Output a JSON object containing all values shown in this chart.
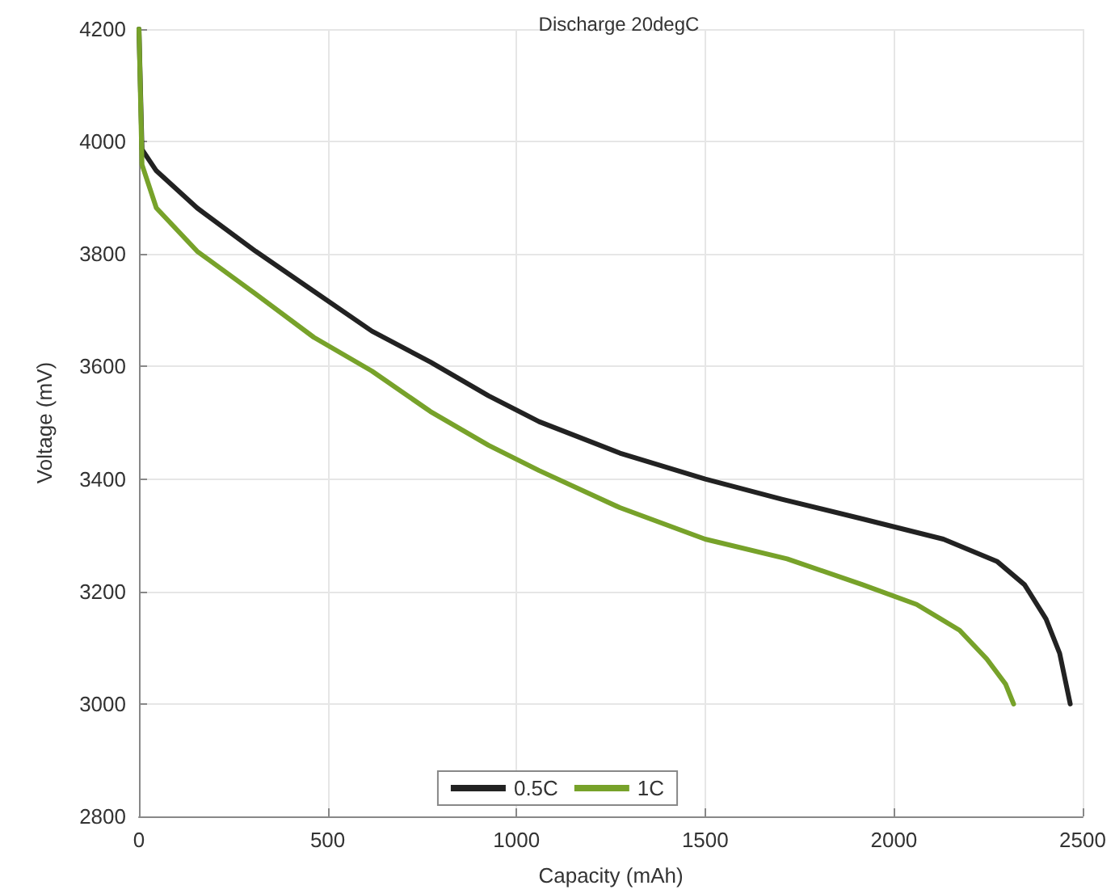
{
  "chart_data": {
    "type": "line",
    "title": "Discharge 20degC",
    "xlabel": "Capacity (mAh)",
    "ylabel": "Voltage (mV)",
    "xlim": [
      0,
      2500
    ],
    "xticks": [
      0,
      500,
      1000,
      1500,
      2000,
      2500
    ],
    "ylim": [
      2800,
      4200
    ],
    "yticks": [
      2800,
      3000,
      3200,
      3400,
      3600,
      3800,
      4000,
      4200
    ],
    "grid": true,
    "legend": "bottom",
    "marker": "none",
    "line_style": "solid",
    "series": [
      {
        "name": "0.5C",
        "color": "#222222",
        "x": [
          0,
          8,
          46,
          154,
          309,
          463,
          617,
          772,
          926,
          1060,
          1274,
          1500,
          1703,
          1917,
          2131,
          2274,
          2346,
          2403,
          2439,
          2467
        ],
        "values": [
          4200,
          3986,
          3948,
          3882,
          3805,
          3734,
          3663,
          3608,
          3548,
          3502,
          3446,
          3400,
          3364,
          3329,
          3293,
          3253,
          3212,
          3151,
          3090,
          3000
        ]
      },
      {
        "name": "1C",
        "color": "#77a22a",
        "x": [
          0,
          8,
          46,
          154,
          309,
          463,
          617,
          772,
          926,
          1060,
          1274,
          1500,
          1717,
          1917,
          2060,
          2174,
          2246,
          2296,
          2317
        ],
        "values": [
          4200,
          3959,
          3882,
          3805,
          3729,
          3652,
          3592,
          3520,
          3460,
          3415,
          3349,
          3293,
          3258,
          3212,
          3177,
          3131,
          3080,
          3035,
          3000
        ]
      }
    ]
  }
}
